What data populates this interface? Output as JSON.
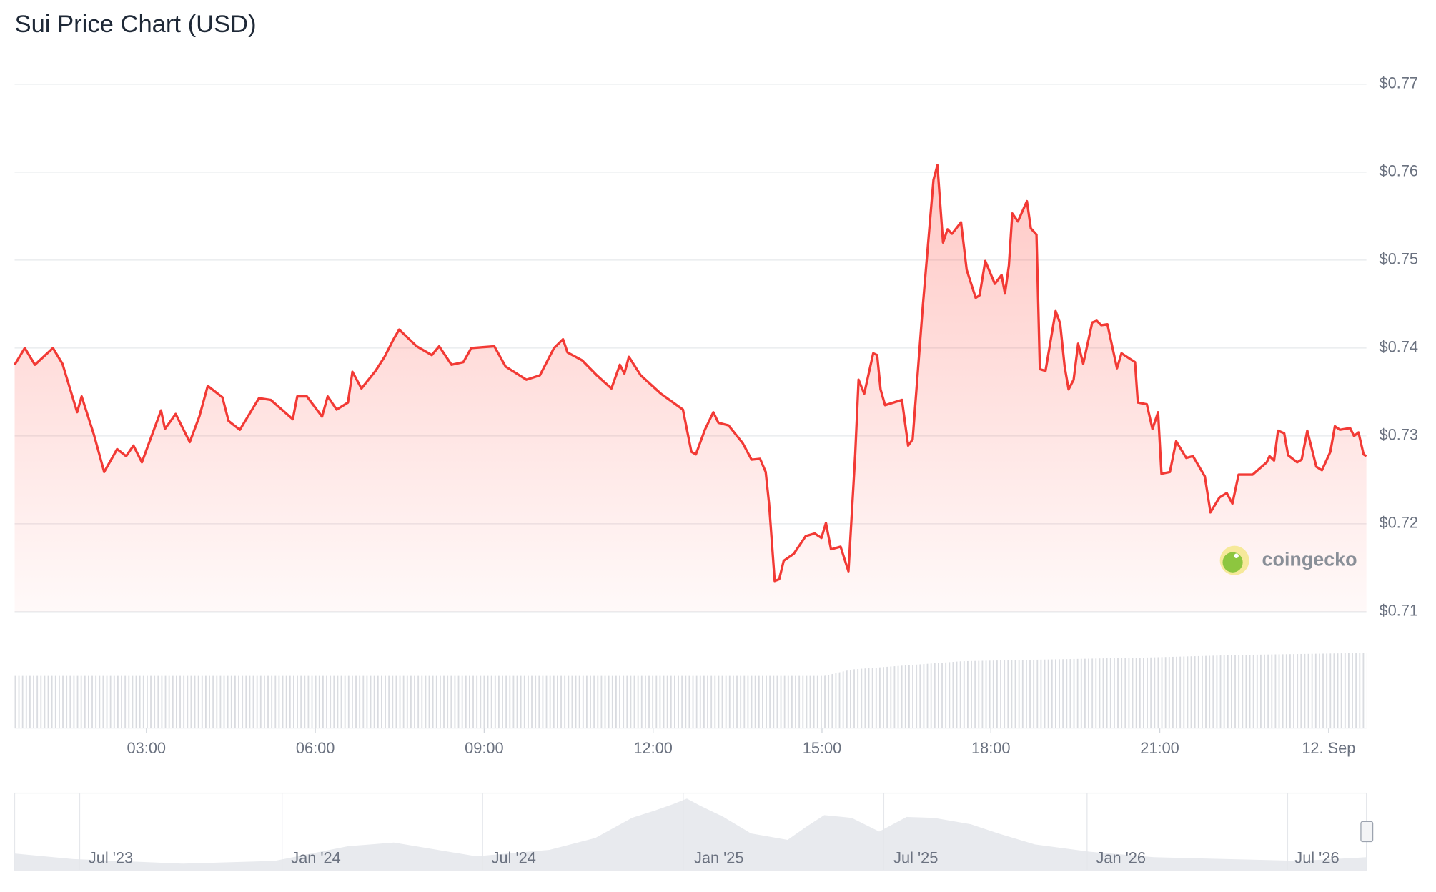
{
  "chart_data": {
    "type": "line",
    "title": "Sui Price Chart (USD)",
    "x": [
      0.66,
      0.84,
      1.02,
      1.34,
      1.51,
      1.77,
      1.85,
      2.07,
      2.25,
      2.48,
      2.64,
      2.77,
      2.92,
      3.26,
      3.33,
      3.52,
      3.77,
      3.94,
      4.09,
      4.35,
      4.46,
      4.66,
      5.0,
      5.21,
      5.6,
      5.68,
      5.85,
      6.12,
      6.22,
      6.38,
      6.58,
      6.66,
      6.82,
      7.07,
      7.23,
      7.39,
      7.49,
      7.8,
      8.07,
      8.2,
      8.42,
      8.63,
      8.77,
      9.18,
      9.38,
      9.75,
      9.99,
      10.24,
      10.4,
      10.48,
      10.74,
      11.0,
      11.26,
      11.41,
      11.49,
      11.57,
      11.78,
      12.14,
      12.53,
      12.68,
      12.76,
      12.92,
      13.07,
      13.16,
      13.34,
      13.59,
      13.75,
      13.9,
      14.0,
      14.06,
      14.16,
      14.24,
      14.32,
      14.5,
      14.71,
      14.87,
      14.99,
      15.07,
      15.16,
      15.33,
      15.47,
      15.59,
      15.65,
      15.75,
      15.91,
      15.98,
      16.04,
      16.12,
      16.42,
      16.53,
      16.61,
      16.79,
      16.98,
      17.05,
      17.15,
      17.23,
      17.31,
      17.47,
      17.57,
      17.73,
      17.8,
      17.9,
      18.07,
      18.19,
      18.25,
      18.32,
      18.38,
      18.48,
      18.64,
      18.71,
      18.81,
      18.87,
      18.97,
      19.15,
      19.23,
      19.31,
      19.38,
      19.47,
      19.55,
      19.64,
      19.8,
      19.88,
      19.96,
      20.07,
      20.24,
      20.32,
      20.56,
      20.61,
      20.77,
      20.87,
      20.97,
      21.03,
      21.18,
      21.29,
      21.47,
      21.59,
      21.8,
      21.9,
      22.06,
      22.19,
      22.29,
      22.4,
      22.65,
      22.9,
      22.95,
      23.03,
      23.1,
      23.21,
      23.28,
      23.44,
      23.52,
      23.62,
      23.78,
      23.88,
      24.03,
      24.11,
      24.2,
      24.38,
      24.45,
      24.53,
      24.62,
      24.67
    ],
    "series": [
      {
        "color": "#f23a35",
        "values": [
          0.7381,
          0.74,
          0.7381,
          0.74,
          0.7382,
          0.7327,
          0.7345,
          0.7301,
          0.7259,
          0.7285,
          0.7277,
          0.7289,
          0.727,
          0.7329,
          0.7308,
          0.7325,
          0.7293,
          0.7322,
          0.7357,
          0.7344,
          0.7317,
          0.7307,
          0.7343,
          0.7341,
          0.7319,
          0.7345,
          0.7345,
          0.7322,
          0.7345,
          0.733,
          0.7338,
          0.7373,
          0.7354,
          0.7374,
          0.739,
          0.741,
          0.7421,
          0.7402,
          0.7392,
          0.7402,
          0.7381,
          0.7384,
          0.74,
          0.7402,
          0.7379,
          0.7364,
          0.7369,
          0.74,
          0.741,
          0.7395,
          0.7386,
          0.7369,
          0.7354,
          0.7381,
          0.7371,
          0.739,
          0.7369,
          0.7348,
          0.733,
          0.7282,
          0.7279,
          0.7307,
          0.7327,
          0.7315,
          0.7312,
          0.7292,
          0.7273,
          0.7274,
          0.7259,
          0.7223,
          0.7135,
          0.7137,
          0.7158,
          0.7166,
          0.7186,
          0.7189,
          0.7184,
          0.7201,
          0.7171,
          0.7174,
          0.7146,
          0.7279,
          0.7364,
          0.7348,
          0.7394,
          0.7392,
          0.7353,
          0.7335,
          0.7341,
          0.7289,
          0.7296,
          0.7447,
          0.7591,
          0.7608,
          0.752,
          0.7535,
          0.753,
          0.7543,
          0.7489,
          0.7457,
          0.746,
          0.7499,
          0.7473,
          0.7483,
          0.7462,
          0.7494,
          0.7553,
          0.7544,
          0.7567,
          0.7536,
          0.7529,
          0.7376,
          0.7374,
          0.7442,
          0.7428,
          0.7379,
          0.7353,
          0.7364,
          0.7405,
          0.7382,
          0.7429,
          0.7431,
          0.7426,
          0.7427,
          0.7377,
          0.7394,
          0.7384,
          0.7338,
          0.7336,
          0.7308,
          0.7327,
          0.7257,
          0.7259,
          0.7294,
          0.7275,
          0.7277,
          0.7254,
          0.7213,
          0.723,
          0.7235,
          0.7223,
          0.7256,
          0.7256,
          0.727,
          0.7277,
          0.7272,
          0.7306,
          0.7303,
          0.7278,
          0.727,
          0.7273,
          0.7306,
          0.7265,
          0.7261,
          0.7282,
          0.7311,
          0.7307,
          0.7309,
          0.73,
          0.7304,
          0.7279,
          0.7277
        ]
      }
    ],
    "xlim": [
      0.66,
      24.67
    ],
    "xticks": [
      {
        "value": 3,
        "label": "03:00"
      },
      {
        "value": 6,
        "label": "06:00"
      },
      {
        "value": 9,
        "label": "09:00"
      },
      {
        "value": 12,
        "label": "12:00"
      },
      {
        "value": 15,
        "label": "15:00"
      },
      {
        "value": 18,
        "label": "18:00"
      },
      {
        "value": 21,
        "label": "21:00"
      },
      {
        "value": 24,
        "label": "12. Sep"
      }
    ],
    "ylim": [
      0.71,
      0.77
    ],
    "yticks": [
      {
        "value": 0.71,
        "label": "$0.71"
      },
      {
        "value": 0.72,
        "label": "$0.72"
      },
      {
        "value": 0.73,
        "label": "$0.73"
      },
      {
        "value": 0.74,
        "label": "$0.74"
      },
      {
        "value": 0.75,
        "label": "$0.75"
      },
      {
        "value": 0.76,
        "label": "$0.76"
      },
      {
        "value": 0.77,
        "label": "$0.77"
      }
    ],
    "grid": true
  },
  "watermark": "coingecko",
  "navigator": {
    "labels": [
      "Jul '23",
      "Jan '24",
      "Jul '24",
      "Jan '25",
      "Jul '25",
      "Jan '26",
      "Jul '26"
    ]
  }
}
